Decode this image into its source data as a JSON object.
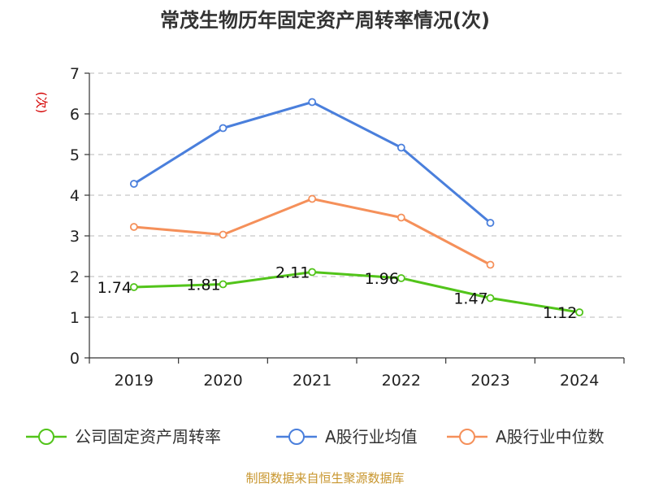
{
  "chart_data": {
    "type": "line",
    "title": "常茂生物历年固定资产周转率情况(次)",
    "ylabel": "(次)",
    "ylim": [
      0,
      7
    ],
    "yticks": [
      0,
      1,
      2,
      3,
      4,
      5,
      6,
      7
    ],
    "categories": [
      "2019",
      "2020",
      "2021",
      "2022",
      "2023",
      "2024"
    ],
    "grid": true,
    "legend_position": "bottom",
    "series": [
      {
        "name": "公司固定资产周转率",
        "color": "#52c41a",
        "values": [
          1.74,
          1.81,
          2.11,
          1.96,
          1.47,
          1.12
        ],
        "labels": [
          "1.74",
          "1.81",
          "2.11",
          "1.96",
          "1.47",
          "1.12"
        ],
        "show_labels": true
      },
      {
        "name": "A股行业均值",
        "color": "#4a7fdc",
        "values": [
          4.28,
          5.65,
          6.29,
          5.17,
          3.32,
          null
        ],
        "show_labels": false
      },
      {
        "name": "A股行业中位数",
        "color": "#f5905a",
        "values": [
          3.22,
          3.03,
          3.91,
          3.45,
          2.29,
          null
        ],
        "show_labels": false
      }
    ],
    "source": "制图数据来自恒生聚源数据库"
  }
}
